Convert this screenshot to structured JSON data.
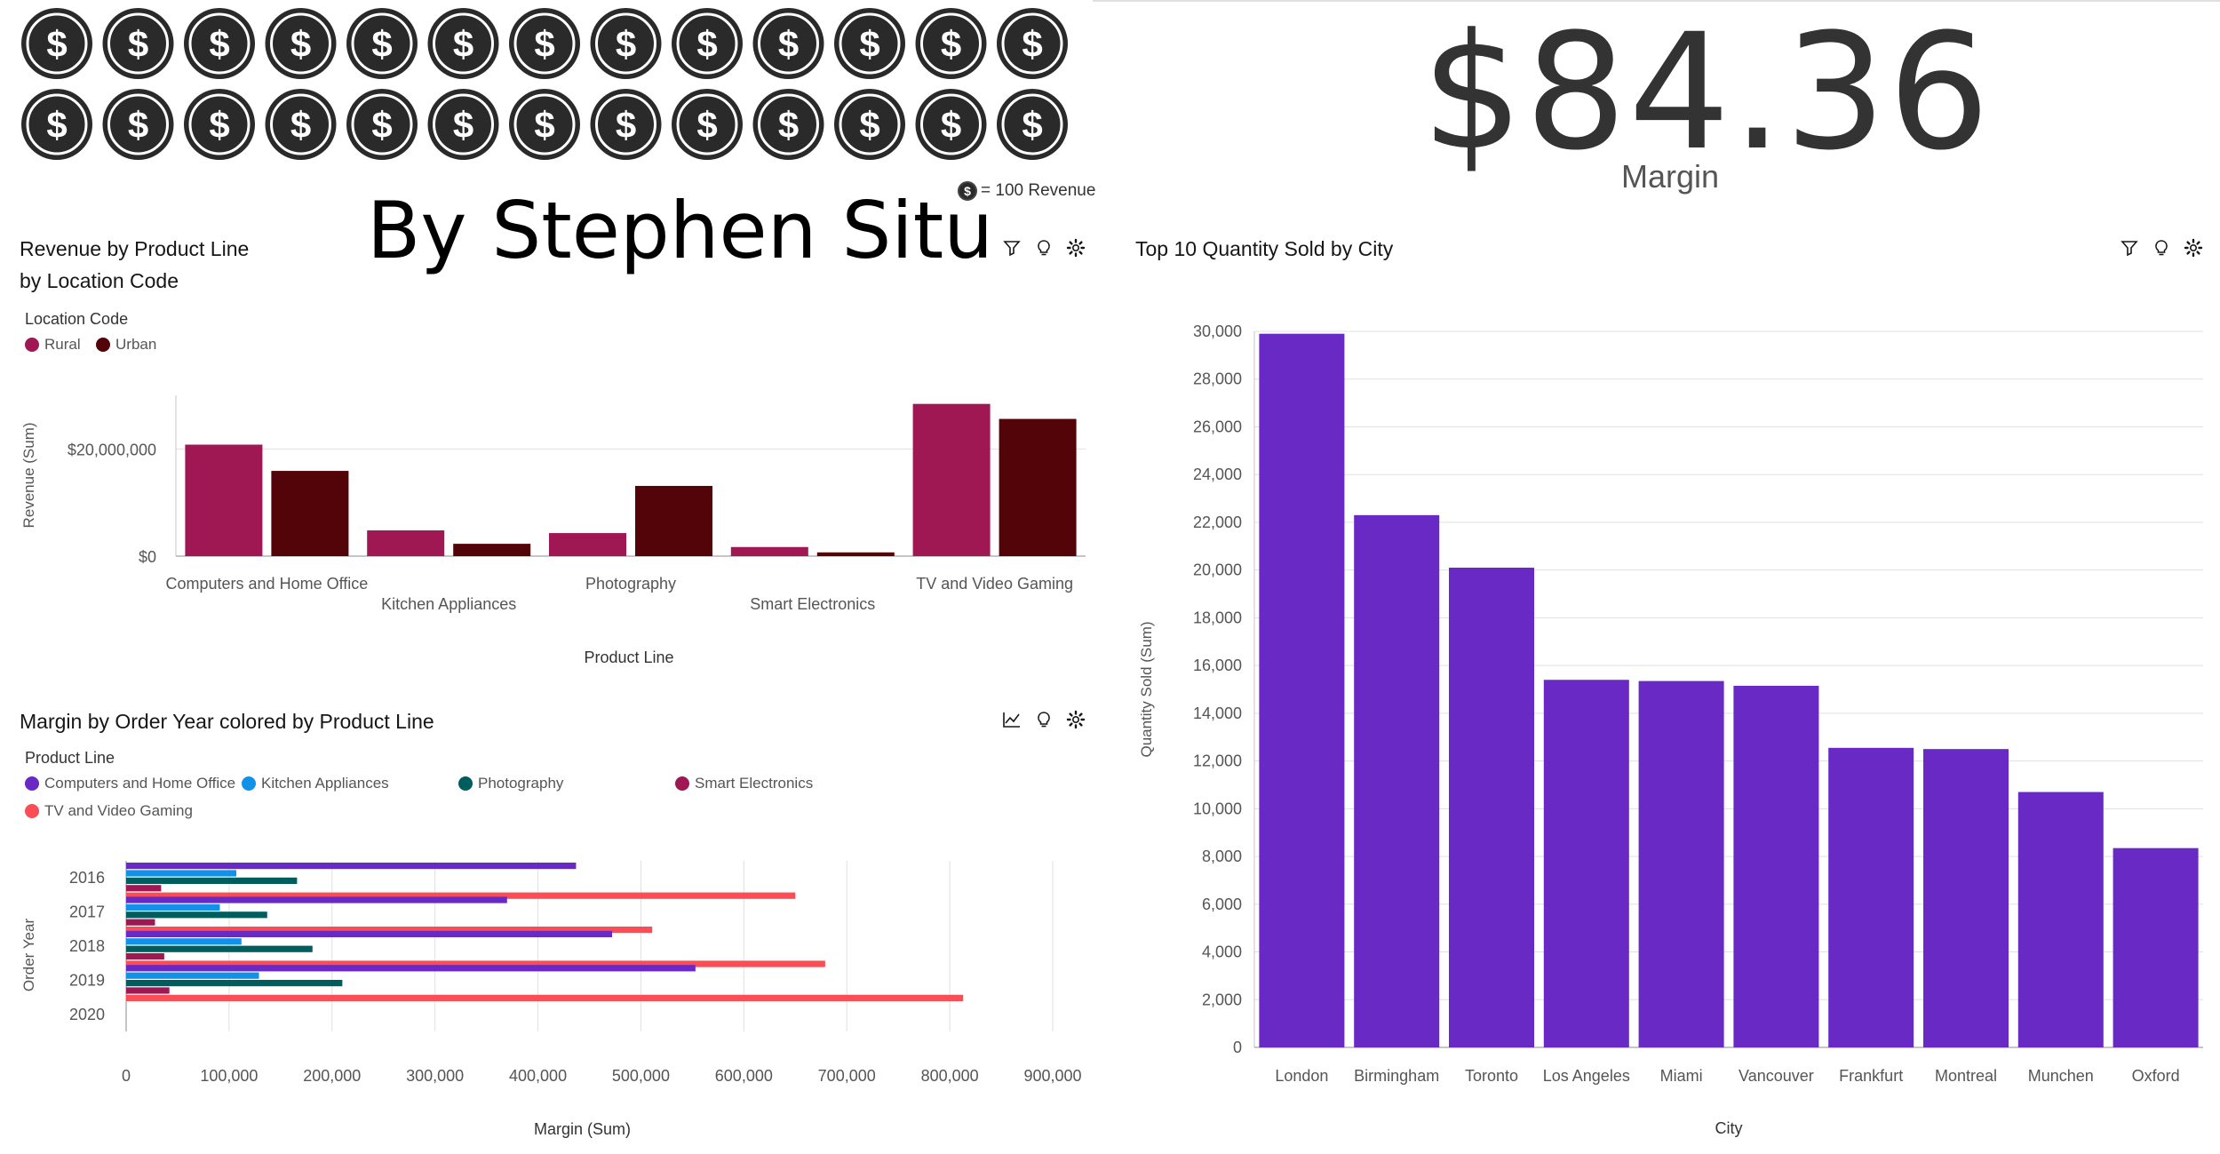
{
  "kpi": {
    "value": "$84.36",
    "label": "Margin",
    "coin_legend": "= 100 Revenue",
    "coin_symbol": "$",
    "coin_rows": [
      13,
      13
    ]
  },
  "author_text": "By Stephen Situ",
  "icons": [
    "coin-icon",
    "filter-icon",
    "lightbulb-icon",
    "gear-icon",
    "line-chart-icon"
  ],
  "chart_data": [
    {
      "type": "bar",
      "title_line1": "Revenue by Product Line",
      "title_line2": "by Location Code",
      "legend_title": "Location Code",
      "categories": [
        "Computers and Home Office",
        "Kitchen Appliances",
        "Photography",
        "Smart Electronics",
        "TV and Video Gaming"
      ],
      "series": [
        {
          "name": "Rural",
          "color": "#9f1853",
          "values": [
            20800000,
            4800000,
            4300000,
            1700000,
            28400000
          ]
        },
        {
          "name": "Urban",
          "color": "#520408",
          "values": [
            15900000,
            2300000,
            13100000,
            700000,
            25600000
          ]
        }
      ],
      "yticks": [
        {
          "v": 0,
          "label": "$0"
        },
        {
          "v": 20000000,
          "label": "$20,000,000"
        }
      ],
      "ylim": [
        0,
        30000000
      ],
      "xlabel": "Product Line",
      "ylabel": "Revenue (Sum)"
    },
    {
      "type": "bar",
      "orientation": "horizontal",
      "title": "Margin by Order Year colored by Product Line",
      "legend_title": "Product Line",
      "categories": [
        "2016",
        "2017",
        "2018",
        "2019",
        "2020"
      ],
      "series": [
        {
          "name": "Computers and Home Office",
          "color": "#6929c4",
          "values": [
            437000,
            370000,
            472000,
            553000,
            0
          ]
        },
        {
          "name": "Kitchen Appliances",
          "color": "#1192e8",
          "values": [
            107000,
            91000,
            112000,
            129000,
            0
          ]
        },
        {
          "name": "Photography",
          "color": "#005d5d",
          "values": [
            166000,
            137000,
            181000,
            210000,
            0
          ]
        },
        {
          "name": "Smart Electronics",
          "color": "#9f1853",
          "values": [
            34000,
            28000,
            37000,
            42000,
            0
          ]
        },
        {
          "name": "TV and Video Gaming",
          "color": "#fa4d56",
          "values": [
            650000,
            511000,
            679000,
            813000,
            0
          ]
        }
      ],
      "xticks": [
        "0",
        "100,000",
        "200,000",
        "300,000",
        "400,000",
        "500,000",
        "600,000",
        "700,000",
        "800,000",
        "900,000"
      ],
      "xlim": [
        0,
        900000
      ],
      "xlabel": "Margin (Sum)",
      "ylabel": "Order Year"
    },
    {
      "type": "bar",
      "title": "Top 10 Quantity Sold by City",
      "categories": [
        "London",
        "Birmingham",
        "Toronto",
        "Los Angeles",
        "Miami",
        "Vancouver",
        "Frankfurt",
        "Montreal",
        "Munchen",
        "Oxford"
      ],
      "series": [
        {
          "color": "#6929c4",
          "values": [
            29900,
            22300,
            20100,
            15400,
            15350,
            15150,
            12550,
            12500,
            10700,
            8350
          ]
        }
      ],
      "yticks": [
        "0",
        "2,000",
        "4,000",
        "6,000",
        "8,000",
        "10,000",
        "12,000",
        "14,000",
        "16,000",
        "18,000",
        "20,000",
        "22,000",
        "24,000",
        "26,000",
        "28,000",
        "30,000"
      ],
      "ylim": [
        0,
        30000
      ],
      "xlabel": "City",
      "ylabel": "Quantity Sold (Sum)"
    }
  ]
}
